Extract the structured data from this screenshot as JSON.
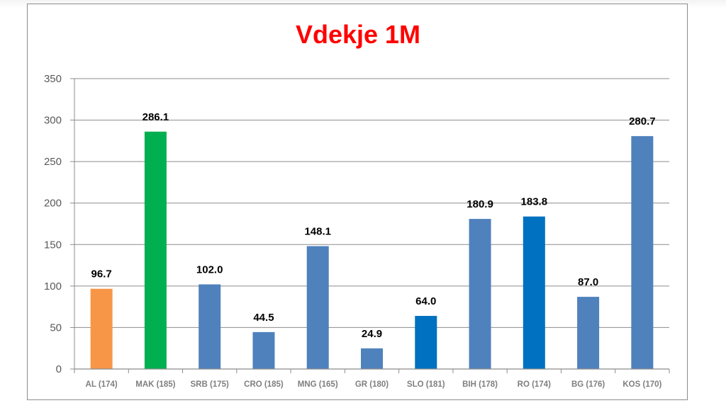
{
  "chart_data": {
    "type": "bar",
    "title": "Vdekje 1M",
    "xlabel": "",
    "ylabel": "",
    "ylim": [
      0,
      350
    ],
    "yticks": [
      0,
      50,
      100,
      150,
      200,
      250,
      300,
      350
    ],
    "grid": true,
    "legend": "none",
    "categories": [
      "AL (174)",
      "MAK (185)",
      "SRB (175)",
      "CRO (185)",
      "MNG (165)",
      "GR (180)",
      "SLO (181)",
      "BIH (178)",
      "RO (174)",
      "BG (176)",
      "KOS (170)"
    ],
    "values": [
      96.7,
      286.1,
      102.0,
      44.5,
      148.1,
      24.9,
      64.0,
      180.9,
      183.8,
      87.0,
      280.7
    ],
    "data_labels": [
      "96.7",
      "286.1",
      "102.0",
      "44.5",
      "148.1",
      "24.9",
      "64.0",
      "180.9",
      "183.8",
      "87.0",
      "280.7"
    ],
    "colors": [
      "#f79646",
      "#00b050",
      "#4f81bd",
      "#4f81bd",
      "#4f81bd",
      "#4f81bd",
      "#0070c0",
      "#4f81bd",
      "#0070c0",
      "#4f81bd",
      "#4f81bd"
    ],
    "title_color": "#ff0000"
  }
}
